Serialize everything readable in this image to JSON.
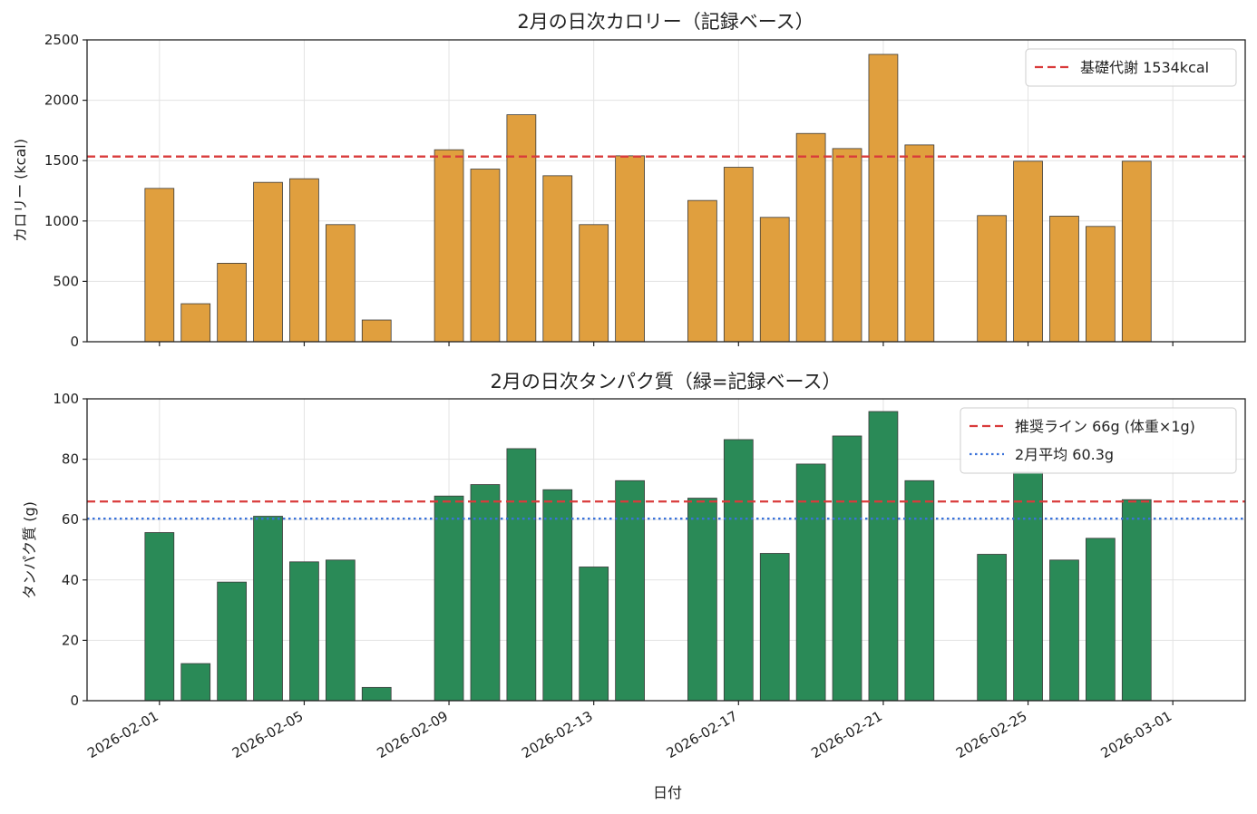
{
  "chart_data": [
    {
      "type": "bar",
      "title": "2月の日次カロリー（記録ベース）",
      "ylabel": "カロリー (kcal)",
      "xlabel": "",
      "ylim": [
        0,
        2500
      ],
      "yticks": [
        0,
        500,
        1000,
        1500,
        2000,
        2500
      ],
      "xlim": [
        "2026-01-30",
        "2026-03-03"
      ],
      "grid": true,
      "legend_position": "top-right",
      "bar_color": "#E09F3E",
      "series": [
        {
          "x": [
            "2026-02-01",
            "2026-02-02",
            "2026-02-03",
            "2026-02-04",
            "2026-02-05",
            "2026-02-06",
            "2026-02-07",
            "2026-02-09",
            "2026-02-10",
            "2026-02-11",
            "2026-02-12",
            "2026-02-13",
            "2026-02-14",
            "2026-02-16",
            "2026-02-17",
            "2026-02-18",
            "2026-02-19",
            "2026-02-20",
            "2026-02-21",
            "2026-02-22",
            "2026-02-24",
            "2026-02-25",
            "2026-02-26",
            "2026-02-27",
            "2026-02-28"
          ],
          "values": [
            1270,
            315,
            650,
            1320,
            1350,
            970,
            180,
            1590,
            1430,
            1880,
            1375,
            970,
            1540,
            1170,
            1445,
            1030,
            1725,
            1600,
            2380,
            1630,
            1045,
            1495,
            1040,
            955,
            1495
          ]
        }
      ],
      "reference_lines": [
        {
          "label": "基礎代謝 1534kcal",
          "y": 1534,
          "color": "#D93B3B",
          "style": "dashed"
        }
      ]
    },
    {
      "type": "bar",
      "title": "2月の日次タンパク質（緑=記録ベース）",
      "ylabel": "タンパク質 (g)",
      "xlabel": "日付",
      "ylim": [
        0,
        100
      ],
      "yticks": [
        0,
        20,
        40,
        60,
        80,
        100
      ],
      "xlim": [
        "2026-01-30",
        "2026-03-03"
      ],
      "xticks": [
        "2026-02-01",
        "2026-02-05",
        "2026-02-09",
        "2026-02-13",
        "2026-02-17",
        "2026-02-21",
        "2026-02-25",
        "2026-03-01"
      ],
      "grid": true,
      "legend_position": "top-right",
      "bar_color": "#2A8A57",
      "series": [
        {
          "x": [
            "2026-02-01",
            "2026-02-02",
            "2026-02-03",
            "2026-02-04",
            "2026-02-05",
            "2026-02-06",
            "2026-02-07",
            "2026-02-09",
            "2026-02-10",
            "2026-02-11",
            "2026-02-12",
            "2026-02-13",
            "2026-02-14",
            "2026-02-16",
            "2026-02-17",
            "2026-02-18",
            "2026-02-19",
            "2026-02-20",
            "2026-02-21",
            "2026-02-22",
            "2026-02-24",
            "2026-02-25",
            "2026-02-26",
            "2026-02-27",
            "2026-02-28"
          ],
          "values": [
            55.7,
            12.3,
            39.3,
            61.1,
            46.0,
            46.6,
            4.4,
            67.8,
            71.6,
            83.5,
            69.9,
            44.3,
            72.9,
            67.1,
            86.5,
            48.8,
            78.4,
            87.7,
            95.8,
            72.9,
            48.5,
            75.7,
            46.6,
            53.8,
            66.6
          ]
        }
      ],
      "reference_lines": [
        {
          "label": "推奨ライン 66g (体重×1g)",
          "y": 66,
          "color": "#D93B3B",
          "style": "dashed"
        },
        {
          "label": "2月平均 60.3g",
          "y": 60.3,
          "color": "#3A72D9",
          "style": "dotted"
        }
      ]
    }
  ]
}
